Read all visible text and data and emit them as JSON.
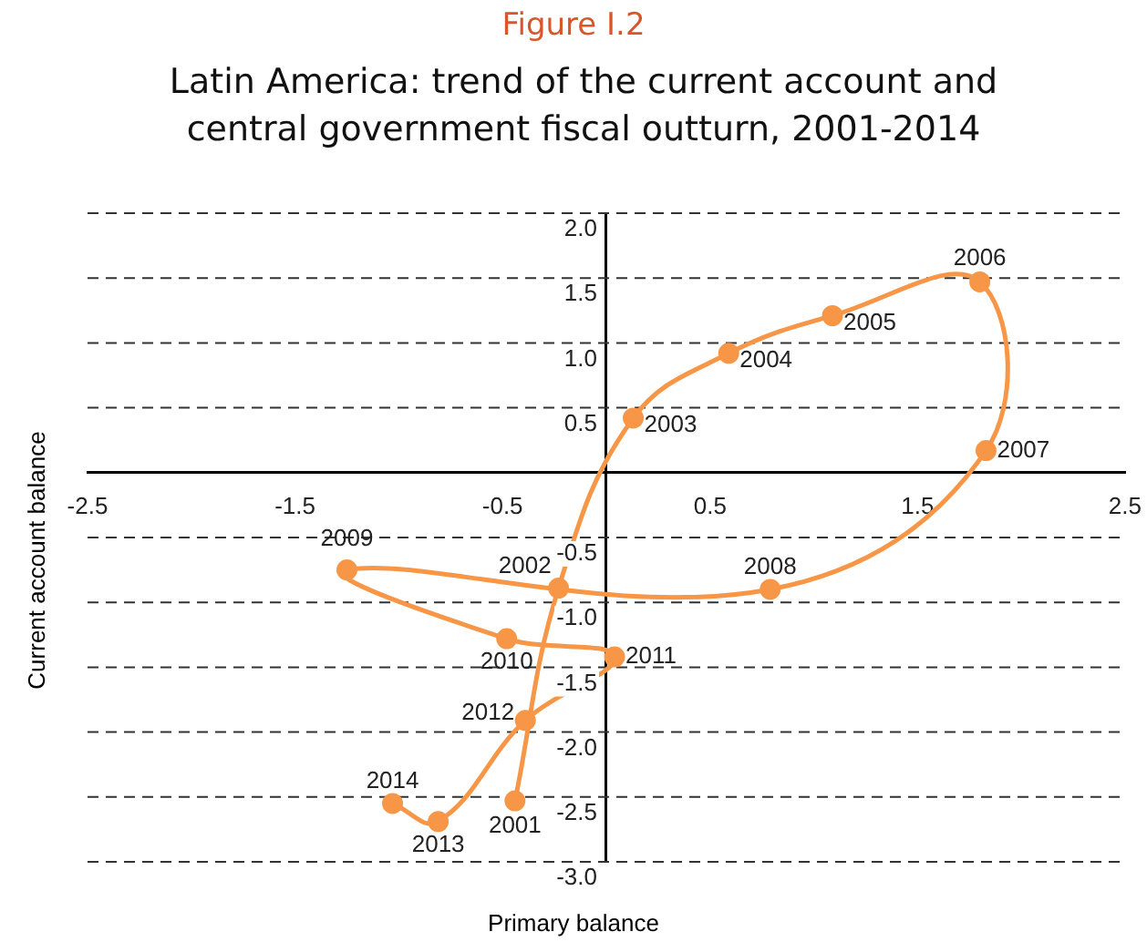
{
  "chart_data": {
    "type": "line",
    "title": "Figure I.2",
    "subtitle": "Latin America: trend of the current account and central government fiscal outturn, 2001-2014",
    "xlabel": "Primary balance",
    "ylabel": "Current account balance",
    "x": [
      -0.44,
      -0.23,
      0.13,
      0.59,
      1.09,
      1.8,
      1.83,
      0.79,
      -1.25,
      -0.48,
      0.04,
      -0.39,
      -0.81,
      -1.03
    ],
    "series": [
      {
        "color": "#f79646",
        "values": [
          -2.53,
          -0.89,
          0.42,
          0.92,
          1.21,
          1.47,
          0.17,
          -0.9,
          -0.75,
          -1.28,
          -1.42,
          -1.91,
          -2.69,
          -2.55
        ]
      }
    ],
    "xlim": [
      -2.5,
      2.5
    ],
    "xticks": [
      -2.5,
      -1.5,
      -0.5,
      0.5,
      1.5,
      2.5
    ],
    "ylim": [
      -3.0,
      2.0
    ],
    "yticks": [
      {
        "value": -3,
        "label": "-3.0"
      },
      {
        "value": -2.5,
        "label": "-2.5"
      },
      {
        "value": -2,
        "label": "-2.0"
      },
      {
        "value": -1.5,
        "label": "-1.5"
      },
      {
        "value": -1,
        "label": "-1.0"
      },
      {
        "value": -0.5,
        "label": "-0.5"
      },
      {
        "value": 0.5,
        "label": "0.5"
      },
      {
        "value": 1,
        "label": "1.0"
      },
      {
        "value": 1.5,
        "label": "1.5"
      },
      {
        "value": 2,
        "label": "2.0"
      }
    ],
    "grid": "y",
    "marker": "circle",
    "line_style": "solid",
    "legend": false,
    "annotations": [
      {
        "text": "2001",
        "x": -0.44,
        "y": -2.53
      },
      {
        "text": "2002",
        "x": -0.23,
        "y": -0.89
      },
      {
        "text": "2003",
        "x": 0.13,
        "y": 0.42
      },
      {
        "text": "2004",
        "x": 0.59,
        "y": 0.92
      },
      {
        "text": "2005",
        "x": 1.09,
        "y": 1.21
      },
      {
        "text": "2006",
        "x": 1.8,
        "y": 1.47
      },
      {
        "text": "2007",
        "x": 1.83,
        "y": 0.17
      },
      {
        "text": "2008",
        "x": 0.79,
        "y": -0.9
      },
      {
        "text": "2009",
        "x": -1.25,
        "y": -0.75
      },
      {
        "text": "2010",
        "x": -0.48,
        "y": -1.28
      },
      {
        "text": "2011",
        "x": 0.04,
        "y": -1.42
      },
      {
        "text": "2012",
        "x": -0.39,
        "y": -1.91
      },
      {
        "text": "2013",
        "x": -0.81,
        "y": -2.69
      },
      {
        "text": "2014",
        "x": -1.03,
        "y": -2.55
      }
    ]
  }
}
